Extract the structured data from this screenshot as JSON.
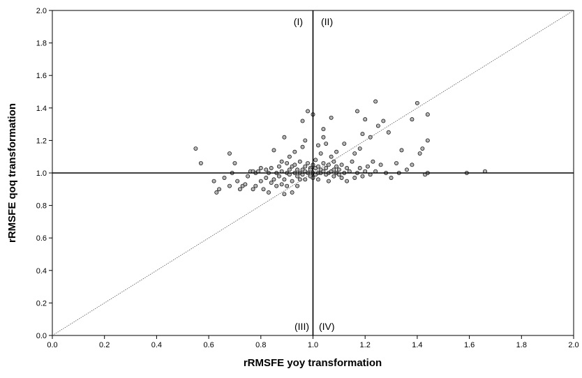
{
  "chart_data": {
    "type": "scatter",
    "xlabel": "rRMSFE yoy transformation",
    "ylabel": "rRMSFE qoq transformation",
    "xlim": [
      0.0,
      2.0
    ],
    "ylim": [
      0.0,
      2.0
    ],
    "x_ticks": [
      "0.0",
      "0.2",
      "0.4",
      "0.6",
      "0.8",
      "1.0",
      "1.2",
      "1.4",
      "1.6",
      "1.8",
      "2.0"
    ],
    "y_ticks": [
      "0.0",
      "0.2",
      "0.4",
      "0.6",
      "0.8",
      "1.0",
      "1.2",
      "1.4",
      "1.6",
      "1.8",
      "2.0"
    ],
    "grid": false,
    "reference_lines": [
      {
        "kind": "vertical",
        "x": 1.0,
        "style": "solid"
      },
      {
        "kind": "horizontal",
        "y": 1.0,
        "style": "solid"
      },
      {
        "kind": "diagonal",
        "from": [
          0,
          0
        ],
        "to": [
          2,
          2
        ],
        "style": "dotted"
      }
    ],
    "quadrant_labels": {
      "top_left": "(I)",
      "top_right": "(II)",
      "bottom_left": "(III)",
      "bottom_right": "(IV)"
    },
    "marker_color": "#b5b5b5",
    "points": [
      [
        0.55,
        1.15
      ],
      [
        0.57,
        1.06
      ],
      [
        0.62,
        0.95
      ],
      [
        0.63,
        0.88
      ],
      [
        0.64,
        0.9
      ],
      [
        0.66,
        0.97
      ],
      [
        0.68,
        0.92
      ],
      [
        0.68,
        1.12
      ],
      [
        0.69,
        1.0
      ],
      [
        0.7,
        1.06
      ],
      [
        0.71,
        0.95
      ],
      [
        0.72,
        0.9
      ],
      [
        0.73,
        0.92
      ],
      [
        0.74,
        0.93
      ],
      [
        0.75,
        0.98
      ],
      [
        0.76,
        1.01
      ],
      [
        0.77,
        0.9
      ],
      [
        0.77,
        1.01
      ],
      [
        0.78,
        0.92
      ],
      [
        0.78,
        1.0
      ],
      [
        0.79,
        1.01
      ],
      [
        0.8,
        0.95
      ],
      [
        0.8,
        1.03
      ],
      [
        0.81,
        0.9
      ],
      [
        0.82,
        0.97
      ],
      [
        0.82,
        1.02
      ],
      [
        0.83,
        1.0
      ],
      [
        0.83,
        0.88
      ],
      [
        0.84,
        0.94
      ],
      [
        0.84,
        1.03
      ],
      [
        0.85,
        0.96
      ],
      [
        0.85,
        1.14
      ],
      [
        0.86,
        1.0
      ],
      [
        0.86,
        0.92
      ],
      [
        0.87,
        1.04
      ],
      [
        0.87,
        0.98
      ],
      [
        0.88,
        1.07
      ],
      [
        0.88,
        1.01
      ],
      [
        0.88,
        0.93
      ],
      [
        0.89,
        1.22
      ],
      [
        0.89,
        0.96
      ],
      [
        0.89,
        0.87
      ],
      [
        0.9,
        1.0
      ],
      [
        0.9,
        1.06
      ],
      [
        0.9,
        0.92
      ],
      [
        0.91,
        1.02
      ],
      [
        0.91,
        0.99
      ],
      [
        0.91,
        1.1
      ],
      [
        0.92,
        1.04
      ],
      [
        0.92,
        0.95
      ],
      [
        0.92,
        0.88
      ],
      [
        0.93,
        1.0
      ],
      [
        0.93,
        1.05
      ],
      [
        0.93,
        1.13
      ],
      [
        0.94,
        0.98
      ],
      [
        0.94,
        1.02
      ],
      [
        0.94,
        0.92
      ],
      [
        0.95,
        1.0
      ],
      [
        0.95,
        1.07
      ],
      [
        0.95,
        0.96
      ],
      [
        0.96,
        1.02
      ],
      [
        0.96,
        1.16
      ],
      [
        0.96,
        0.99
      ],
      [
        0.96,
        1.32
      ],
      [
        0.97,
        1.04
      ],
      [
        0.97,
        0.96
      ],
      [
        0.97,
        1.01
      ],
      [
        0.97,
        1.2
      ],
      [
        0.98,
        1.38
      ],
      [
        0.98,
        1.0
      ],
      [
        0.98,
        1.06
      ],
      [
        0.99,
        0.98
      ],
      [
        0.99,
        1.03
      ],
      [
        0.99,
        1.02
      ],
      [
        1.0,
        1.0
      ],
      [
        1.0,
        1.05
      ],
      [
        1.0,
        0.97
      ],
      [
        1.0,
        1.36
      ],
      [
        1.01,
        1.03
      ],
      [
        1.01,
        0.99
      ],
      [
        1.01,
        1.08
      ],
      [
        1.02,
        1.0
      ],
      [
        1.02,
        1.04
      ],
      [
        1.02,
        1.17
      ],
      [
        1.02,
        0.96
      ],
      [
        1.03,
        1.02
      ],
      [
        1.03,
        1.0
      ],
      [
        1.03,
        1.12
      ],
      [
        1.04,
        1.01
      ],
      [
        1.04,
        1.06
      ],
      [
        1.04,
        1.27
      ],
      [
        1.04,
        1.22
      ],
      [
        1.05,
        0.99
      ],
      [
        1.05,
        1.03
      ],
      [
        1.05,
        1.18
      ],
      [
        1.06,
        1.0
      ],
      [
        1.06,
        1.05
      ],
      [
        1.06,
        0.95
      ],
      [
        1.07,
        1.01
      ],
      [
        1.07,
        1.1
      ],
      [
        1.07,
        1.34
      ],
      [
        1.08,
        1.02
      ],
      [
        1.08,
        0.98
      ],
      [
        1.08,
        1.07
      ],
      [
        1.09,
        1.0
      ],
      [
        1.09,
        1.04
      ],
      [
        1.09,
        1.13
      ],
      [
        1.1,
        0.99
      ],
      [
        1.1,
        1.02
      ],
      [
        1.11,
        1.05
      ],
      [
        1.11,
        0.97
      ],
      [
        1.12,
        1.0
      ],
      [
        1.12,
        1.18
      ],
      [
        1.13,
        1.03
      ],
      [
        1.13,
        0.95
      ],
      [
        1.14,
        1.01
      ],
      [
        1.15,
        1.07
      ],
      [
        1.16,
        0.97
      ],
      [
        1.16,
        1.12
      ],
      [
        1.17,
        1.38
      ],
      [
        1.17,
        1.0
      ],
      [
        1.18,
        1.03
      ],
      [
        1.18,
        1.15
      ],
      [
        1.19,
        1.24
      ],
      [
        1.19,
        0.98
      ],
      [
        1.2,
        1.33
      ],
      [
        1.2,
        1.01
      ],
      [
        1.21,
        1.04
      ],
      [
        1.22,
        1.22
      ],
      [
        1.22,
        0.99
      ],
      [
        1.23,
        1.07
      ],
      [
        1.24,
        1.44
      ],
      [
        1.24,
        1.01
      ],
      [
        1.25,
        1.29
      ],
      [
        1.26,
        1.05
      ],
      [
        1.27,
        1.32
      ],
      [
        1.28,
        1.0
      ],
      [
        1.29,
        1.25
      ],
      [
        1.3,
        0.97
      ],
      [
        1.32,
        1.06
      ],
      [
        1.33,
        1.0
      ],
      [
        1.34,
        1.14
      ],
      [
        1.36,
        1.02
      ],
      [
        1.38,
        1.33
      ],
      [
        1.38,
        1.05
      ],
      [
        1.4,
        1.43
      ],
      [
        1.41,
        1.12
      ],
      [
        1.42,
        1.15
      ],
      [
        1.43,
        0.99
      ],
      [
        1.44,
        1.36
      ],
      [
        1.44,
        1.2
      ],
      [
        1.44,
        1.0
      ],
      [
        1.59,
        1.0
      ],
      [
        1.66,
        1.01
      ]
    ]
  }
}
